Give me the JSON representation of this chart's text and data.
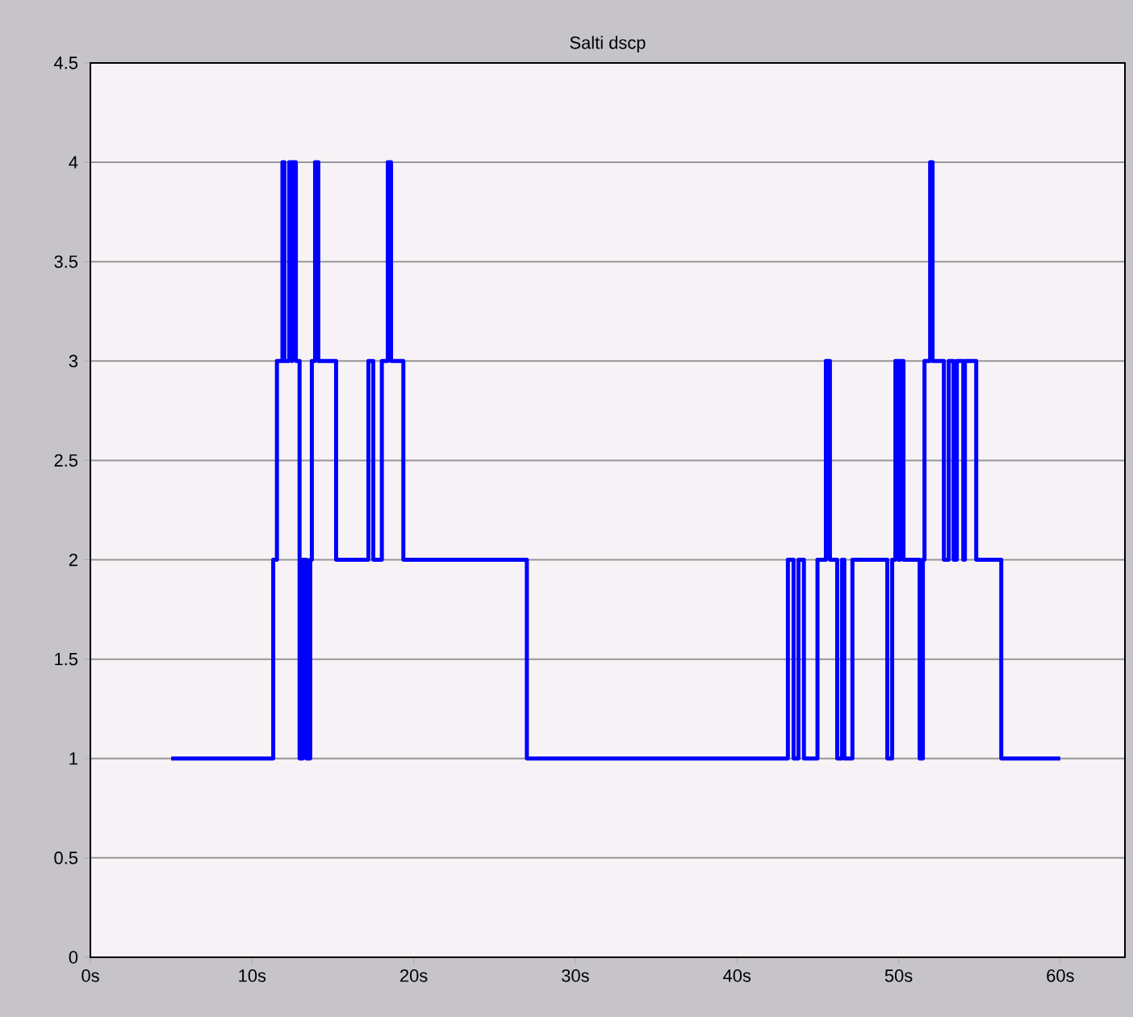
{
  "chart_data": {
    "type": "step",
    "title": "Salti dscp",
    "x": [
      5,
      11.31,
      11.54,
      11.88,
      12.0,
      12.3,
      12.45,
      12.5,
      12.71,
      12.94,
      13.14,
      13.37,
      13.6,
      13.7,
      13.9,
      14.1,
      15.2,
      17.2,
      17.5,
      18.03,
      18.4,
      18.6,
      19.36,
      27.0,
      43.15,
      43.5,
      43.8,
      44.14,
      44.98,
      45.5,
      45.75,
      46.2,
      46.5,
      46.64,
      47.14,
      49.3,
      49.6,
      49.8,
      50.0,
      50.1,
      50.3,
      51.3,
      51.5,
      51.6,
      51.95,
      52.1,
      52.8,
      53.1,
      53.4,
      53.6,
      54.0,
      54.1,
      54.8,
      56.35,
      60
    ],
    "values": [
      1,
      2,
      3,
      4,
      3,
      4,
      3,
      4,
      3,
      1,
      2,
      1,
      2,
      3,
      4,
      3,
      2,
      3,
      2,
      3,
      4,
      3,
      2,
      1,
      2,
      1,
      2,
      1,
      2,
      3,
      2,
      1,
      2,
      1,
      2,
      1,
      2,
      3,
      2,
      3,
      2,
      1,
      2,
      3,
      4,
      3,
      2,
      3,
      2,
      3,
      2,
      3,
      2,
      1,
      1
    ],
    "color": "#0000ff",
    "xlim": [
      0,
      64
    ],
    "xticks": [
      {
        "value": 0,
        "label": "0s"
      },
      {
        "value": 10,
        "label": "10s"
      },
      {
        "value": 20,
        "label": "20s"
      },
      {
        "value": 30,
        "label": "30s"
      },
      {
        "value": 40,
        "label": "40s"
      },
      {
        "value": 50,
        "label": "50s"
      },
      {
        "value": 60,
        "label": "60s"
      }
    ],
    "ylim": [
      0,
      4.5
    ],
    "yticks": [
      0,
      0.5,
      1,
      1.5,
      2,
      2.5,
      3,
      3.5,
      4,
      4.5
    ],
    "grid": "y"
  }
}
